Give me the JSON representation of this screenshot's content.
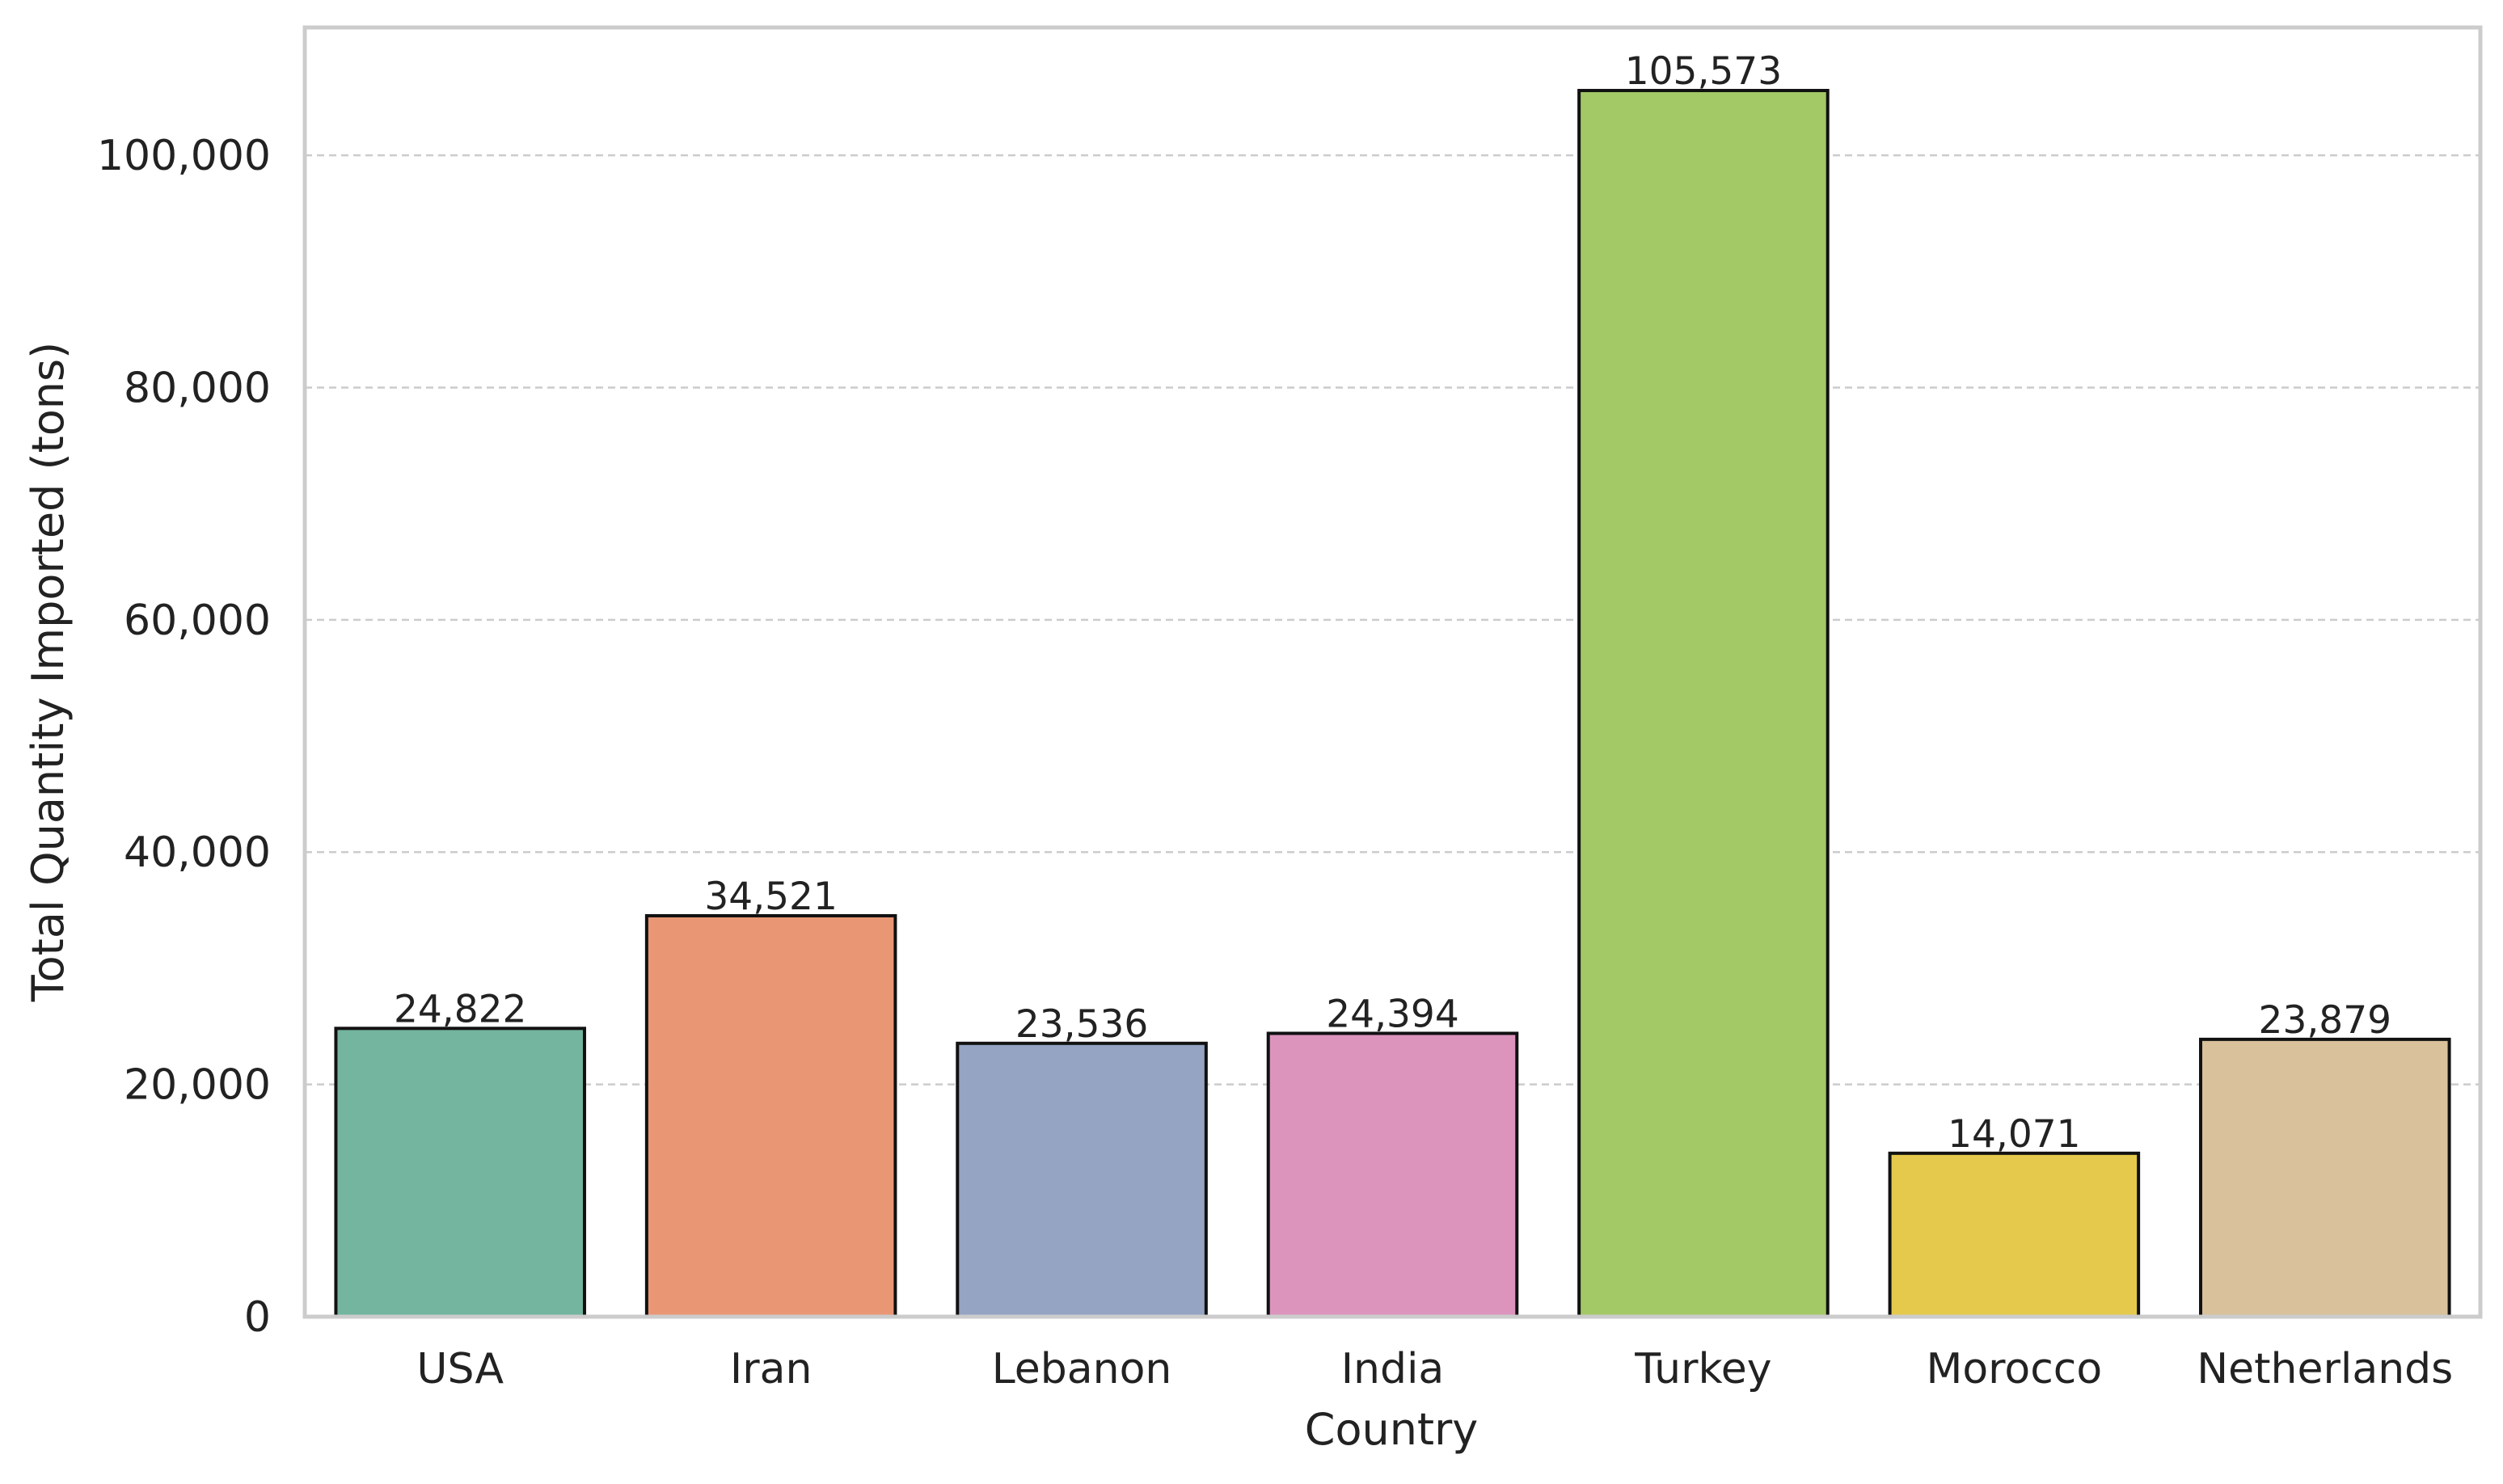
{
  "chart_data": {
    "type": "bar",
    "title": "",
    "xlabel": "Country",
    "ylabel": "Total Quantity Imported (tons)",
    "categories": [
      "USA",
      "Iran",
      "Lebanon",
      "India",
      "Turkey",
      "Morocco",
      "Netherlands"
    ],
    "values": [
      24822,
      34521,
      23536,
      24394,
      105573,
      14071,
      23879
    ],
    "value_labels": [
      "24,822",
      "34,521",
      "23,536",
      "24,394",
      "105,573",
      "14,071",
      "23,879"
    ],
    "ylim": [
      0,
      111000
    ],
    "yticks": [
      0,
      20000,
      40000,
      60000,
      80000,
      100000
    ],
    "ytick_labels": [
      "0",
      "20,000",
      "40,000",
      "60,000",
      "80,000",
      "100,000"
    ],
    "colors": [
      "#73b59f",
      "#e99675",
      "#94a4c2",
      "#dc94bd",
      "#a3c966",
      "#e4c94c",
      "#d8c19b"
    ],
    "grid": "y-dashed",
    "legend": "none"
  }
}
